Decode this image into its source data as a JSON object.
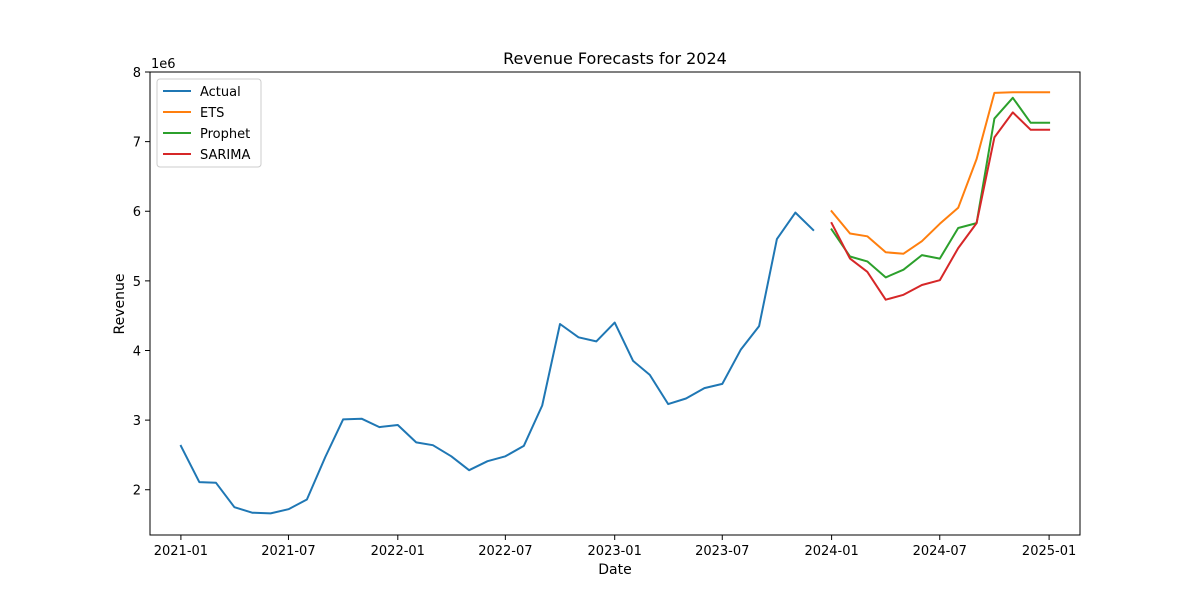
{
  "chart_data": {
    "type": "line",
    "title": "Revenue Forecasts for 2024",
    "xlabel": "Date",
    "ylabel": "Revenue",
    "y_offset_label": "1e6",
    "ylim": [
      1.35,
      8.0
    ],
    "xlim": [
      "2020-11-10",
      "2025-02-22"
    ],
    "x_ticks": [
      "2021-01",
      "2021-07",
      "2022-01",
      "2022-07",
      "2023-01",
      "2023-07",
      "2024-01",
      "2024-07",
      "2025-01"
    ],
    "y_ticks": [
      2,
      3,
      4,
      5,
      6,
      7,
      8
    ],
    "grid": false,
    "legend_position": "upper-left",
    "series": [
      {
        "name": "Actual",
        "color": "#1f77b4",
        "x": [
          "2021-01",
          "2021-02",
          "2021-03",
          "2021-04",
          "2021-05",
          "2021-06",
          "2021-07",
          "2021-08",
          "2021-09",
          "2021-10",
          "2021-11",
          "2021-12",
          "2022-01",
          "2022-02",
          "2022-03",
          "2022-04",
          "2022-05",
          "2022-06",
          "2022-07",
          "2022-08",
          "2022-09",
          "2022-10",
          "2022-11",
          "2022-12",
          "2023-01",
          "2023-02",
          "2023-03",
          "2023-04",
          "2023-05",
          "2023-06",
          "2023-07",
          "2023-08",
          "2023-09",
          "2023-10",
          "2023-11",
          "2023-12"
        ],
        "values": [
          2.63,
          2.11,
          2.1,
          1.75,
          1.67,
          1.66,
          1.72,
          1.86,
          2.47,
          3.01,
          3.02,
          2.9,
          2.93,
          2.68,
          2.64,
          2.48,
          2.28,
          2.41,
          2.48,
          2.63,
          3.21,
          4.38,
          4.19,
          4.13,
          4.4,
          3.85,
          3.65,
          3.23,
          3.31,
          3.46,
          3.52,
          4.01,
          4.35,
          5.6,
          5.98,
          5.73
        ]
      },
      {
        "name": "ETS",
        "color": "#ff7f0e",
        "x": [
          "2024-01",
          "2024-02",
          "2024-03",
          "2024-04",
          "2024-05",
          "2024-06",
          "2024-07",
          "2024-08",
          "2024-09",
          "2024-10",
          "2024-11",
          "2024-12",
          "2025-01"
        ],
        "values": [
          6.0,
          5.68,
          5.64,
          5.41,
          5.39,
          5.57,
          5.82,
          6.05,
          6.75,
          7.7,
          7.71,
          7.71,
          7.71
        ]
      },
      {
        "name": "Prophet",
        "color": "#2ca02c",
        "x": [
          "2024-01",
          "2024-02",
          "2024-03",
          "2024-04",
          "2024-05",
          "2024-06",
          "2024-07",
          "2024-08",
          "2024-09",
          "2024-10",
          "2024-11",
          "2024-12",
          "2025-01"
        ],
        "values": [
          5.74,
          5.35,
          5.28,
          5.05,
          5.16,
          5.37,
          5.32,
          5.76,
          5.83,
          7.33,
          7.63,
          7.27,
          7.27
        ]
      },
      {
        "name": "SARIMA",
        "color": "#d62728",
        "x": [
          "2024-01",
          "2024-02",
          "2024-03",
          "2024-04",
          "2024-05",
          "2024-06",
          "2024-07",
          "2024-08",
          "2024-09",
          "2024-10",
          "2024-11",
          "2024-12",
          "2025-01"
        ],
        "values": [
          5.83,
          5.32,
          5.13,
          4.73,
          4.8,
          4.94,
          5.01,
          5.47,
          5.83,
          7.06,
          7.42,
          7.17,
          7.17
        ]
      }
    ]
  }
}
